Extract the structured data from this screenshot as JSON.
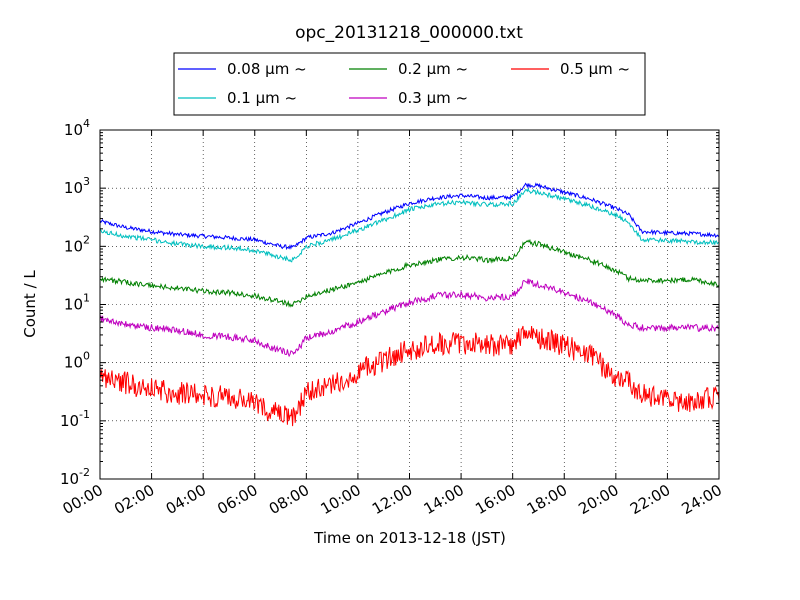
{
  "chart_data": {
    "type": "line",
    "title": "opc_20131218_000000.txt",
    "xlabel": "Time on 2013-12-18 (JST)",
    "ylabel": "Count / L",
    "x_scale": "time",
    "y_scale": "log",
    "xlim": [
      "2013-12-18 00:00",
      "2013-12-19 00:00"
    ],
    "ylim": [
      0.01,
      10000
    ],
    "grid": true,
    "legend_placement": "top-center",
    "x_ticks": [
      "00:00",
      "02:00",
      "04:00",
      "06:00",
      "08:00",
      "10:00",
      "12:00",
      "14:00",
      "16:00",
      "18:00",
      "20:00",
      "22:00",
      "24:00"
    ],
    "y_ticks": [
      {
        "base": "10",
        "exp": "-2",
        "value": 0.01
      },
      {
        "base": "10",
        "exp": "-1",
        "value": 0.1
      },
      {
        "base": "10",
        "exp": "0",
        "value": 1
      },
      {
        "base": "10",
        "exp": "1",
        "value": 10
      },
      {
        "base": "10",
        "exp": "2",
        "value": 100
      },
      {
        "base": "10",
        "exp": "3",
        "value": 1000
      },
      {
        "base": "10",
        "exp": "4",
        "value": 10000
      }
    ],
    "x": [
      "00:00",
      "01:00",
      "02:00",
      "03:00",
      "04:00",
      "05:00",
      "06:00",
      "07:00",
      "07:30",
      "08:00",
      "09:00",
      "10:00",
      "11:00",
      "12:00",
      "13:00",
      "14:00",
      "15:00",
      "16:00",
      "16:30",
      "17:00",
      "18:00",
      "19:00",
      "20:00",
      "20:30",
      "21:00",
      "22:00",
      "23:00",
      "24:00"
    ],
    "series": [
      {
        "name": "0.08 μm ~",
        "color": "#0000ff",
        "values": [
          270,
          210,
          180,
          160,
          150,
          140,
          130,
          100,
          95,
          140,
          170,
          250,
          380,
          550,
          680,
          750,
          680,
          700,
          1150,
          1100,
          850,
          650,
          450,
          350,
          180,
          170,
          165,
          155
        ]
      },
      {
        "name": "0.1 μm ~",
        "color": "#00bfbf",
        "values": [
          180,
          150,
          130,
          110,
          100,
          95,
          85,
          65,
          58,
          100,
          130,
          190,
          280,
          430,
          520,
          580,
          520,
          540,
          900,
          850,
          650,
          490,
          340,
          260,
          130,
          125,
          120,
          115
        ]
      },
      {
        "name": "0.2 μm ~",
        "color": "#008000",
        "values": [
          28,
          24,
          21,
          19,
          17,
          16,
          14,
          11,
          10,
          14,
          18,
          24,
          34,
          48,
          58,
          65,
          58,
          62,
          118,
          110,
          80,
          58,
          38,
          28,
          26,
          26,
          27,
          22
        ]
      },
      {
        "name": "0.3 μm ~",
        "color": "#bf00bf",
        "values": [
          5.8,
          4.5,
          4.0,
          3.6,
          3.0,
          2.8,
          2.4,
          1.6,
          1.4,
          2.6,
          3.5,
          5.0,
          7.5,
          11,
          14,
          15,
          13,
          14,
          25,
          22,
          16,
          11,
          6.5,
          4.5,
          4.0,
          4.0,
          4.0,
          3.8
        ]
      },
      {
        "name": "0.5 μm ~",
        "color": "#ff0000",
        "values": [
          0.6,
          0.45,
          0.35,
          0.3,
          0.28,
          0.25,
          0.2,
          0.12,
          0.11,
          0.3,
          0.4,
          0.7,
          1.1,
          1.7,
          2.0,
          2.2,
          2.0,
          2.1,
          3.0,
          2.7,
          2.0,
          1.3,
          0.6,
          0.45,
          0.3,
          0.22,
          0.22,
          0.25
        ]
      }
    ]
  }
}
